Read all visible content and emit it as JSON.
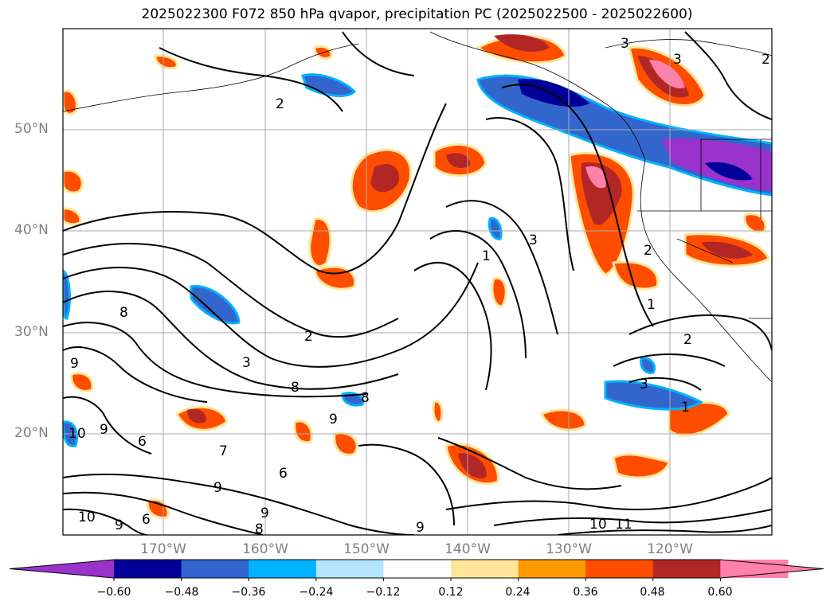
{
  "title": "2025022300 F072 850 hPa qvapor, precipitation PC (2025022500 - 2025022600)",
  "lat_labels": [
    "50°N",
    "40°N",
    "30°N",
    "20°N"
  ],
  "lon_labels": [
    "170°W",
    "160°W",
    "150°W",
    "140°W",
    "130°W",
    "120°W"
  ],
  "colorbar": {
    "ticks": [
      "−0.60",
      "−0.48",
      "−0.36",
      "−0.24",
      "−0.12",
      "0.12",
      "0.24",
      "0.36",
      "0.48",
      "0.60"
    ],
    "colors": [
      "#9933cc",
      "#000099",
      "#3366cc",
      "#00b2ff",
      "#b3e5ff",
      "#ffffff",
      "#ffe699",
      "#ff9900",
      "#ff4d00",
      "#b32626",
      "#ff80aa",
      "#ff80aa"
    ]
  },
  "contour_labels": [
    "2",
    "2",
    "3",
    "3",
    "2",
    "3",
    "8",
    "9",
    "10",
    "9",
    "6",
    "7",
    "9",
    "6",
    "10",
    "9",
    "8",
    "9",
    "6",
    "8",
    "9",
    "8",
    "10",
    "11",
    "9",
    "1",
    "2",
    "3",
    "1",
    "3",
    "2",
    "1"
  ]
}
